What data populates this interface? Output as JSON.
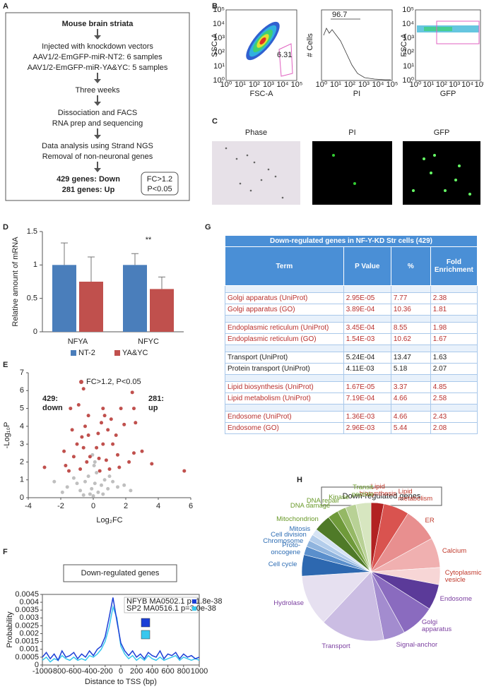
{
  "panel_labels": [
    "A",
    "B",
    "C",
    "D",
    "E",
    "F",
    "G",
    "H"
  ],
  "flowchart": {
    "title": "Mouse brain striata",
    "steps": [
      [
        "Injected with knockdown vectors",
        "AAV1/2-EmGFP-miR-NT2: 6 samples",
        "AAV1/2-EmGFP-miR-YA&YC: 5 samples"
      ],
      [
        "Three weeks"
      ],
      [
        "Dissociation and FACS",
        "RNA prep and sequencing"
      ],
      [
        "Data analysis using Strand NGS",
        "Removal of non-neuronal genes"
      ]
    ],
    "result": [
      "429 genes: Down",
      "281 genes: Up"
    ],
    "criteria": [
      "FC>1.2",
      "P<0.05"
    ]
  },
  "cytometry": {
    "ticks": [
      "10⁰",
      "10¹",
      "10²",
      "10³",
      "10⁴",
      "10⁵"
    ],
    "plots": [
      {
        "xlabel": "FSC-A",
        "ylabel": "SSC-A",
        "gate": "6.31"
      },
      {
        "xlabel": "PI",
        "ylabel": "# Cells",
        "gate": "96.7"
      },
      {
        "xlabel": "GFP",
        "ylabel": "FSC-A"
      }
    ]
  },
  "microscopy": {
    "titles": [
      "Phase",
      "PI",
      "GFP"
    ]
  },
  "table": {
    "title": "Down-regulated genes in NF-Y-KD Str cells (429)",
    "header": [
      "Term",
      "P Value",
      "%",
      "Fold Enrichment"
    ],
    "groups": [
      {
        "color": "#b8312f",
        "rows": [
          [
            "Golgi apparatus (UniProt)",
            "2.95E-05",
            "7.77",
            "2.38"
          ],
          [
            "Golgi apparatus (GO)",
            "3.89E-04",
            "10.36",
            "1.81"
          ]
        ]
      },
      {
        "color": "#b8312f",
        "rows": [
          [
            "Endoplasmic reticulum (UniProt)",
            "3.45E-04",
            "8.55",
            "1.98"
          ],
          [
            "Endoplasmic reticulum (GO)",
            "1.54E-03",
            "10.62",
            "1.67"
          ]
        ]
      },
      {
        "color": "#222222",
        "rows": [
          [
            "Transport (UniProt)",
            "5.24E-04",
            "13.47",
            "1.63"
          ],
          [
            "Protein transport (UniProt)",
            "4.11E-03",
            "5.18",
            "2.07"
          ]
        ]
      },
      {
        "color": "#b8312f",
        "rows": [
          [
            "Lipid biosynthesis (UniProt)",
            "1.67E-05",
            "3.37",
            "4.85"
          ],
          [
            "Lipid metabolism (UniProt)",
            "7.19E-04",
            "4.66",
            "2.58"
          ]
        ]
      },
      {
        "color": "#b8312f",
        "rows": [
          [
            "Endosome (UniProt)",
            "1.36E-03",
            "4.66",
            "2.43"
          ],
          [
            "Endosome (GO)",
            "2.96E-03",
            "5.44",
            "2.08"
          ]
        ]
      }
    ]
  },
  "chart_data": [
    {
      "type": "bar",
      "ylabel": "Relative amount of mRNA",
      "categories": [
        "NFYA",
        "NFYC"
      ],
      "series": [
        {
          "name": "NT-2",
          "color": "#4a7ebb",
          "values": [
            1,
            1
          ],
          "errors": [
            0.33,
            0.17
          ]
        },
        {
          "name": "YA&YC",
          "color": "#c0504d",
          "values": [
            0.75,
            0.64
          ],
          "errors": [
            0.37,
            0.18
          ]
        }
      ],
      "ylim": [
        0,
        1.5
      ],
      "yticks": [
        0,
        0.5,
        1,
        1.5
      ],
      "annotations": [
        "**"
      ],
      "legend": "bottom"
    },
    {
      "type": "scatter",
      "xlabel": "Log₂FC",
      "ylabel": "-Log₁₀P",
      "xlim": [
        -4,
        6
      ],
      "xticks": [
        -4,
        -2,
        0,
        2,
        4,
        6
      ],
      "ylim": [
        0,
        7
      ],
      "yticks": [
        0,
        1,
        2,
        3,
        4,
        5,
        6,
        7
      ],
      "series": [
        {
          "name": "FC>1.2, P<0.05",
          "color": "#c0504d",
          "x": [
            -3,
            -1.4,
            -0.6,
            -0.9,
            0.6,
            1.7,
            2.4,
            2.5,
            2.6,
            3.6,
            5.6,
            -1.8,
            -1.7,
            2.5,
            3.0,
            -0.5,
            -0.3,
            0.3,
            0.5,
            0.9,
            1.2,
            1.5,
            -1.0,
            -1.2,
            -0.4,
            -0.8,
            0.4,
            0.8,
            1.0,
            0.2,
            -0.2,
            -0.6,
            0.6,
            1.4,
            -1.3,
            1.9,
            2.2,
            -0.3,
            0.7,
            1.1,
            -0.7,
            1.6,
            -1.5,
            0.35
          ],
          "y": [
            1.7,
            5,
            6.1,
            5.2,
            5.0,
            5.0,
            5.9,
            5.0,
            4.2,
            1.9,
            1.5,
            2.6,
            1.8,
            2.5,
            2.6,
            4.0,
            3.5,
            3.6,
            4.2,
            3.8,
            3.0,
            2.4,
            3.0,
            2.3,
            2.0,
            1.6,
            1.5,
            2.1,
            1.6,
            2.8,
            2.3,
            2.8,
            3.0,
            3.5,
            3.8,
            4.1,
            2.0,
            4.6,
            4.6,
            4.4,
            3.4,
            1.7,
            1.5,
            2.2
          ]
        },
        {
          "color": "#bfbfbf",
          "x": [
            -2.4,
            -1.6,
            -1.2,
            -0.8,
            -0.5,
            -0.3,
            -0.1,
            0,
            0.1,
            0.2,
            0.3,
            0.5,
            0.7,
            0.9,
            1.2,
            1.5,
            1.9,
            2.3,
            -0.2,
            0.05,
            -0.05,
            0.1,
            -1.9,
            0.6,
            -0.6,
            1.0,
            -1.0
          ],
          "y": [
            0.9,
            0.6,
            1.1,
            0.4,
            0.9,
            1.2,
            0.5,
            0.1,
            0.8,
            1.4,
            0.3,
            0.7,
            1.0,
            0.5,
            0.9,
            0.6,
            0.7,
            0.4,
            0.2,
            1.8,
            2.4,
            2.0,
            0.3,
            0.2,
            0.15,
            1.2,
            0.8
          ]
        }
      ],
      "annotations": [
        [
          "429:",
          "down"
        ],
        [
          "281:",
          "up"
        ]
      ],
      "legend": "upper center"
    },
    {
      "type": "line",
      "title": "Down-regulated genes",
      "xlabel": "Distance to TSS (bp)",
      "ylabel": "Probability",
      "x": [
        -1000,
        -950,
        -900,
        -850,
        -800,
        -750,
        -700,
        -650,
        -600,
        -550,
        -500,
        -450,
        -400,
        -350,
        -300,
        -250,
        -200,
        -150,
        -100,
        -50,
        0,
        50,
        100,
        150,
        200,
        250,
        300,
        350,
        400,
        450,
        500,
        550,
        600,
        650,
        700,
        750,
        800,
        850,
        900,
        950,
        1000
      ],
      "xlim": [
        -1000,
        1000
      ],
      "xticks": [
        -1000,
        -800,
        -600,
        -400,
        -200,
        0,
        200,
        400,
        600,
        800,
        1000
      ],
      "ylim": [
        0,
        0.0045
      ],
      "yticks": [
        0,
        0.0005,
        0.001,
        0.0015,
        0.002,
        0.0025,
        0.003,
        0.0035,
        0.004,
        0.0045
      ],
      "series": [
        {
          "name": "NFYB MA0502.1 p=1.8e-38",
          "color": "#1c3fd6",
          "values": [
            0.0005,
            0.0008,
            0.0004,
            0.0007,
            0.0003,
            0.0009,
            0.0005,
            0.0006,
            0.0008,
            0.0004,
            0.0007,
            0.0005,
            0.0009,
            0.0006,
            0.001,
            0.0012,
            0.0018,
            0.003,
            0.0043,
            0.0028,
            0.0014,
            0.0009,
            0.0006,
            0.0009,
            0.0005,
            0.0007,
            0.0004,
            0.0008,
            0.0006,
            0.0005,
            0.0009,
            0.0004,
            0.0007,
            0.0006,
            0.0008,
            0.0004,
            0.0007,
            0.0005,
            0.0006,
            0.0004,
            0.0005
          ]
        },
        {
          "name": "SP2 MA0516.1 p=3.0e-38",
          "color": "#38c8ee",
          "values": [
            0.0003,
            0.0005,
            0.0002,
            0.0004,
            0.0003,
            0.0006,
            0.0004,
            0.0003,
            0.0005,
            0.0003,
            0.0004,
            0.0003,
            0.0006,
            0.0005,
            0.0007,
            0.001,
            0.0015,
            0.0024,
            0.0037,
            0.003,
            0.0012,
            0.0007,
            0.0004,
            0.0006,
            0.0003,
            0.0005,
            0.0003,
            0.0006,
            0.0004,
            0.0003,
            0.0005,
            0.0003,
            0.0004,
            0.0005,
            0.0006,
            0.0003,
            0.0005,
            0.0004,
            0.0003,
            0.0004,
            0.0003
          ]
        }
      ],
      "legend": "upper right"
    },
    {
      "type": "pie",
      "title": "Down-regulated genes",
      "categories": [
        "Lipid biosynthesis",
        "Lipid metabolism",
        "ER",
        "Calcium",
        "Cytoplasmic vesicle",
        "Endosome",
        "Golgi apparatus",
        "Signal-anchor",
        "Transport",
        "Hydrolase",
        "Cell cycle",
        "Proto-oncogene",
        "Chromosome",
        "Cell division",
        "Mitosis",
        "Mitochondrion",
        "DNA damage",
        "DNA repair",
        "Kinase",
        "Transit peptide"
      ],
      "values": [
        3,
        6,
        8,
        7,
        4,
        6,
        8,
        5,
        15,
        12,
        5,
        2,
        1.5,
        1.5,
        1.5,
        4,
        2.5,
        2,
        2.5,
        3.5
      ],
      "colors": [
        "#b22222",
        "#d9534f",
        "#e88f8f",
        "#f0b0b0",
        "#f7d6d6",
        "#5b3a99",
        "#8a6bbf",
        "#a38ccf",
        "#cbbde3",
        "#e6e0f0",
        "#2d68b0",
        "#5a8fcc",
        "#8fb4de",
        "#b3cdeb",
        "#d5e3f4",
        "#4f7a28",
        "#6f9a3a",
        "#95b865",
        "#b8d195",
        "#d7e6c0"
      ],
      "label_colors": [
        "#c0392b",
        "#c0392b",
        "#c0392b",
        "#c0392b",
        "#c0392b",
        "#7b3fa0",
        "#7b3fa0",
        "#7b3fa0",
        "#7b3fa0",
        "#7b3fa0",
        "#2e6db4",
        "#2e6db4",
        "#2e6db4",
        "#2e6db4",
        "#2e6db4",
        "#6a9a2a",
        "#6a9a2a",
        "#6a9a2a",
        "#6a9a2a",
        "#6a9a2a"
      ]
    }
  ]
}
